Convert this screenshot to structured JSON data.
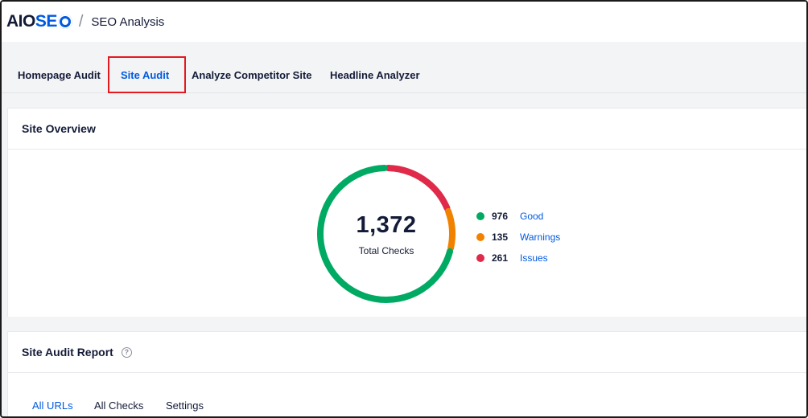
{
  "brand": {
    "logo_left": "AIO",
    "logo_right": "SE",
    "logo_icon": "gear-o-icon",
    "accent": "#005ae0"
  },
  "breadcrumb": {
    "separator": "/",
    "title": "SEO Analysis"
  },
  "tabs": [
    {
      "label": "Homepage Audit",
      "active": false
    },
    {
      "label": "Site Audit",
      "active": true
    },
    {
      "label": "Analyze Competitor Site",
      "active": false
    },
    {
      "label": "Headline Analyzer",
      "active": false
    }
  ],
  "overview": {
    "title": "Site Overview",
    "total": "1,372",
    "total_label": "Total Checks",
    "legend": [
      {
        "count": "976",
        "label": "Good",
        "color": "#00aa63"
      },
      {
        "count": "135",
        "label": "Warnings",
        "color": "#f18200"
      },
      {
        "count": "261",
        "label": "Issues",
        "color": "#df2a4a"
      }
    ]
  },
  "chart_data": {
    "type": "pie",
    "categories": [
      "Good",
      "Warnings",
      "Issues"
    ],
    "values": [
      976,
      135,
      261
    ],
    "colors": [
      "#00aa63",
      "#f18200",
      "#df2a4a"
    ],
    "title": "",
    "center_value": "1,372",
    "center_label": "Total Checks"
  },
  "report": {
    "title": "Site Audit Report",
    "help_icon": "question-circle-icon",
    "subtabs": [
      {
        "label": "All URLs",
        "active": true
      },
      {
        "label": "All Checks",
        "active": false
      },
      {
        "label": "Settings",
        "active": false
      }
    ]
  }
}
